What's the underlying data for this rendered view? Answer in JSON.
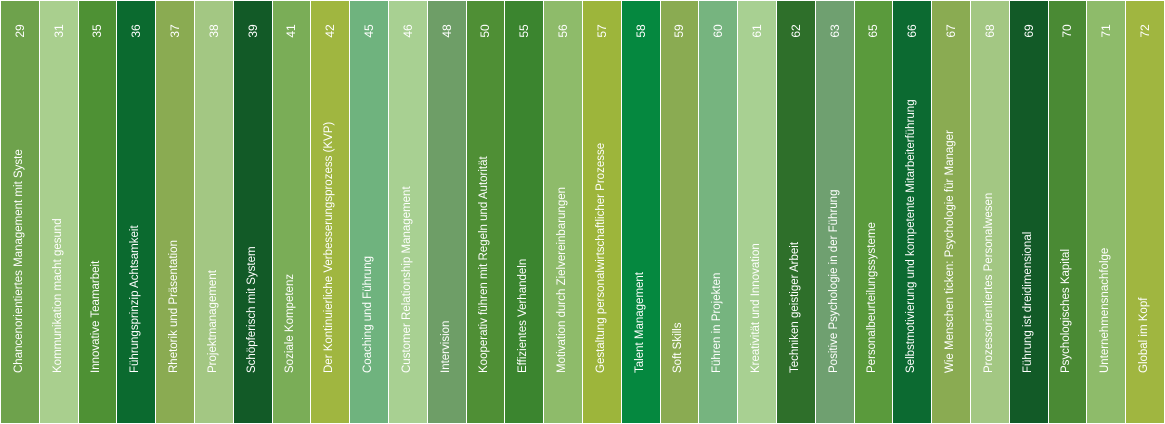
{
  "books": [
    {
      "number": "29",
      "title": "Chancenorientiertes Management mit Syste",
      "color": "#6ea24c"
    },
    {
      "number": "31",
      "title": "Kommunikation macht gesund",
      "color": "#a9cf8e"
    },
    {
      "number": "35",
      "title": "Innovative Teamarbeit",
      "color": "#4e9134"
    },
    {
      "number": "36",
      "title": "Führungsprinzip Achtsamkeit",
      "color": "#0b6a2f"
    },
    {
      "number": "37",
      "title": "Rhetorik und Präsentation",
      "color": "#8aab52"
    },
    {
      "number": "38",
      "title": "Projektmanagement",
      "color": "#a3c783"
    },
    {
      "number": "39",
      "title": "Schöpferisch mit System",
      "color": "#125a27"
    },
    {
      "number": "41",
      "title": "Soziale Kompetenz",
      "color": "#7aad57"
    },
    {
      "number": "42",
      "title": "Der Kontinuierliche Verbesserungsprozess (KVP)",
      "color": "#a0b640"
    },
    {
      "number": "45",
      "title": "Coaching und Führung",
      "color": "#6fb37e"
    },
    {
      "number": "46",
      "title": "Customer Relationship Management",
      "color": "#a8d092"
    },
    {
      "number": "48",
      "title": "Intervision",
      "color": "#6e9e67"
    },
    {
      "number": "50",
      "title": "Kooperativ führen mit Regeln und Autorität",
      "color": "#4f8f35"
    },
    {
      "number": "55",
      "title": "Effizientes Verhandeln",
      "color": "#3b852f"
    },
    {
      "number": "56",
      "title": "Motivation durch Zielvereinbarungen",
      "color": "#8ebb6a"
    },
    {
      "number": "57",
      "title": "Gestaltung personalwirtschaftlicher Prozesse",
      "color": "#9db53b"
    },
    {
      "number": "58",
      "title": "Talent Management",
      "color": "#05883f"
    },
    {
      "number": "59",
      "title": "Soft Skills",
      "color": "#8aab52"
    },
    {
      "number": "60",
      "title": "Führen in Projekten",
      "color": "#76b47f"
    },
    {
      "number": "61",
      "title": "Kreativität und Innovation",
      "color": "#a8d092"
    },
    {
      "number": "62",
      "title": "Techniken geistiger Arbeit",
      "color": "#2e6f2a"
    },
    {
      "number": "63",
      "title": "Positive Psychologie in der Führung",
      "color": "#6fa070"
    },
    {
      "number": "65",
      "title": "Personalbeurteilungssysteme",
      "color": "#5a9a3c"
    },
    {
      "number": "66",
      "title": "Selbstmotivierung und kompetente Mitarbeiterführung",
      "color": "#0c6a31"
    },
    {
      "number": "67",
      "title": "Wie Menschen ticken: Psychologie für Manager",
      "color": "#8aab52"
    },
    {
      "number": "68",
      "title": "Prozessorientiertes Personalwesen",
      "color": "#a3c783"
    },
    {
      "number": "69",
      "title": "Führung ist dreidimensional",
      "color": "#125a27"
    },
    {
      "number": "70",
      "title": "Psychologisches Kapital",
      "color": "#4a8a34"
    },
    {
      "number": "71",
      "title": "Unternehmensnachfolge",
      "color": "#8ebb6a"
    },
    {
      "number": "72",
      "title": "Global im Kopf",
      "color": "#a0b640"
    }
  ]
}
